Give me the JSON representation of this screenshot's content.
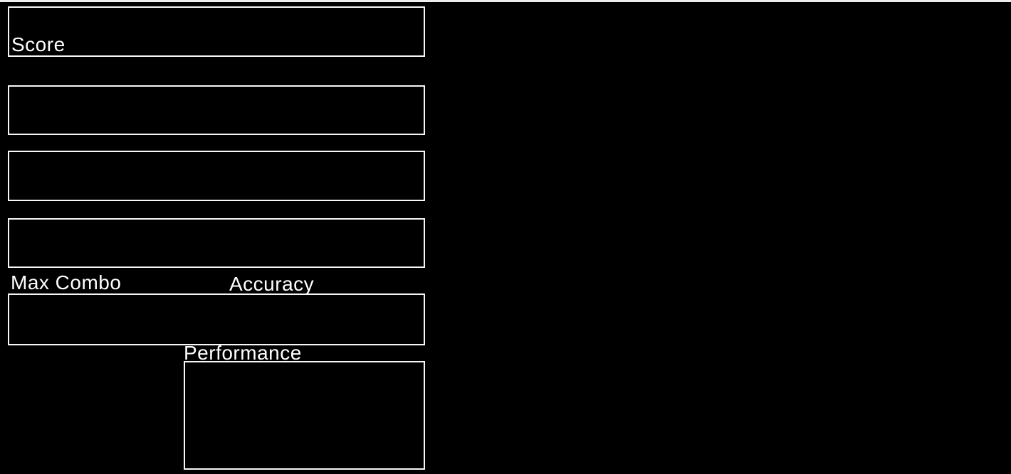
{
  "screen": {
    "labels": {
      "score": "Score",
      "max_combo": "Max Combo",
      "accuracy": "Accuracy",
      "performance": "Performance"
    },
    "colors": {
      "background": "#000000",
      "panel_border": "#f7f7f7",
      "text": "#ffffff",
      "top_divider": "#ededed"
    }
  }
}
